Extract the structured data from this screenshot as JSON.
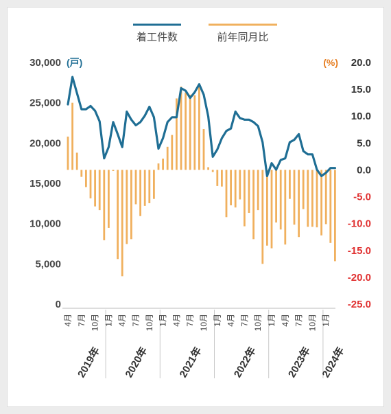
{
  "colors": {
    "starts_line": "#1f6e94",
    "yoy_bar": "#f0b05e",
    "left_axis_text": "#444444",
    "right_axis_positive": "#333333",
    "right_axis_negative": "#e03030",
    "left_unit": "#1f6e94",
    "right_unit": "#e67e22"
  },
  "chart_data": {
    "type": "bar+line",
    "legend": {
      "position": "top-center",
      "items": [
        "着工件数",
        "前年同月比"
      ]
    },
    "left_axis": {
      "unit": "(戸)",
      "ylim": [
        0,
        30000
      ],
      "ticks": [
        "30,000",
        "25,000",
        "20,000",
        "15,000",
        "10,000",
        "5,000",
        "0"
      ],
      "tick_values": [
        30000,
        25000,
        20000,
        15000,
        10000,
        5000,
        0
      ]
    },
    "right_axis": {
      "unit": "(%)",
      "ylim": [
        -25,
        20
      ],
      "ticks": [
        "20.0",
        "15.0",
        "10.0",
        "5.0",
        "0.0",
        "-5.0",
        "-10.0",
        "-15.0",
        "-20.0",
        "-25.0"
      ],
      "tick_values": [
        20,
        15,
        10,
        5,
        0,
        -5,
        -10,
        -15,
        -20,
        -25
      ]
    },
    "x_month_ticks": [
      {
        "i": 0,
        "label": "4月"
      },
      {
        "i": 3,
        "label": "7月"
      },
      {
        "i": 6,
        "label": "10月"
      },
      {
        "i": 9,
        "label": "1月"
      },
      {
        "i": 12,
        "label": "4月"
      },
      {
        "i": 15,
        "label": "7月"
      },
      {
        "i": 18,
        "label": "10月"
      },
      {
        "i": 21,
        "label": "1月"
      },
      {
        "i": 24,
        "label": "4月"
      },
      {
        "i": 27,
        "label": "7月"
      },
      {
        "i": 30,
        "label": "10月"
      },
      {
        "i": 33,
        "label": "1月"
      },
      {
        "i": 36,
        "label": "4月"
      },
      {
        "i": 39,
        "label": "7月"
      },
      {
        "i": 42,
        "label": "10月"
      },
      {
        "i": 45,
        "label": "1月"
      },
      {
        "i": 48,
        "label": "4月"
      },
      {
        "i": 51,
        "label": "7月"
      },
      {
        "i": 54,
        "label": "10月"
      },
      {
        "i": 57,
        "label": "1月"
      }
    ],
    "years": [
      {
        "label": "2019年",
        "start": 0,
        "end": 8
      },
      {
        "label": "2020年",
        "start": 9,
        "end": 20
      },
      {
        "label": "2021年",
        "start": 21,
        "end": 32
      },
      {
        "label": "2022年",
        "start": 33,
        "end": 44
      },
      {
        "label": "2023年",
        "start": 45,
        "end": 56
      },
      {
        "label": "2024年",
        "start": 57,
        "end": 59
      }
    ],
    "series": [
      {
        "name": "着工件数",
        "type": "line",
        "axis": "left",
        "values": [
          24800,
          28200,
          26200,
          24200,
          24200,
          24600,
          24000,
          22700,
          18100,
          19500,
          22600,
          21100,
          19500,
          23900,
          22900,
          22200,
          22600,
          23400,
          24500,
          23200,
          19300,
          20600,
          22600,
          23200,
          23200,
          26800,
          26500,
          25600,
          26300,
          27300,
          26000,
          23300,
          18300,
          19200,
          20600,
          21500,
          21800,
          23900,
          23100,
          22900,
          22900,
          22600,
          22100,
          20100,
          15900,
          17500,
          16700,
          17900,
          18100,
          20100,
          20400,
          21100,
          19000,
          18600,
          18600,
          16700,
          15900,
          16300,
          16900,
          16900
        ]
      },
      {
        "name": "前年同月比",
        "type": "bar",
        "axis": "right",
        "values": [
          6.2,
          12.5,
          3.2,
          -1.3,
          -3.2,
          -5.3,
          -6.8,
          -7.5,
          -13.1,
          -10.8,
          -0.2,
          -16.6,
          -19.8,
          -13.8,
          -12.9,
          -6.4,
          -8.6,
          -6.7,
          -6.2,
          -5.4,
          1.2,
          2.1,
          4.3,
          6.5,
          13.3,
          15.5,
          14.4,
          14.0,
          13.9,
          15.6,
          7.6,
          0.5,
          -0.4,
          -3.0,
          -3.1,
          -8.8,
          -6.6,
          -7.0,
          -5.5,
          -10.5,
          -8.0,
          -12.9,
          -7.5,
          -17.5,
          -14.1,
          -14.6,
          -9.8,
          -11.1,
          -13.9,
          -5.4,
          -10.2,
          -12.5,
          -7.3,
          -10.6,
          -10.6,
          -10.7,
          -12.2,
          -10.1,
          -13.6,
          -17.0
        ]
      }
    ]
  }
}
